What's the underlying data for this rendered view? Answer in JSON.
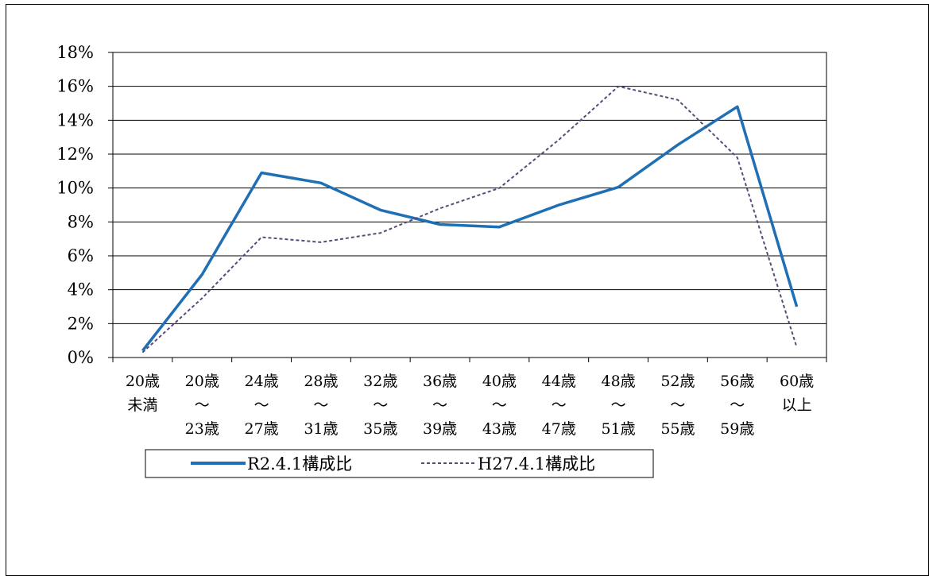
{
  "chart_data": {
    "type": "line",
    "categories": [
      [
        "20歳",
        "未満"
      ],
      [
        "20歳",
        "～",
        "23歳"
      ],
      [
        "24歳",
        "～",
        "27歳"
      ],
      [
        "28歳",
        "～",
        "31歳"
      ],
      [
        "32歳",
        "～",
        "35歳"
      ],
      [
        "36歳",
        "～",
        "39歳"
      ],
      [
        "40歳",
        "～",
        "43歳"
      ],
      [
        "44歳",
        "～",
        "47歳"
      ],
      [
        "48歳",
        "～",
        "51歳"
      ],
      [
        "52歳",
        "～",
        "55歳"
      ],
      [
        "56歳",
        "～",
        "59歳"
      ],
      [
        "60歳",
        "以上"
      ]
    ],
    "series": [
      {
        "name": "R2.4.1構成比",
        "color": "#1f6fb5",
        "dashed": false,
        "values": [
          0.4,
          4.9,
          10.9,
          10.3,
          8.7,
          7.85,
          7.7,
          9.0,
          10.05,
          12.55,
          14.8,
          3.0
        ]
      },
      {
        "name": "H27.4.1構成比",
        "color": "#5a4a7a",
        "dashed": true,
        "values": [
          0.3,
          3.5,
          7.1,
          6.8,
          7.35,
          8.8,
          10.0,
          12.85,
          16.0,
          15.2,
          11.8,
          0.6
        ]
      }
    ],
    "ylim": [
      0,
      18
    ],
    "yticks": [
      "0%",
      "2%",
      "4%",
      "6%",
      "8%",
      "10%",
      "12%",
      "14%",
      "16%",
      "18%"
    ],
    "grid": true,
    "legend": "bottom-center"
  }
}
